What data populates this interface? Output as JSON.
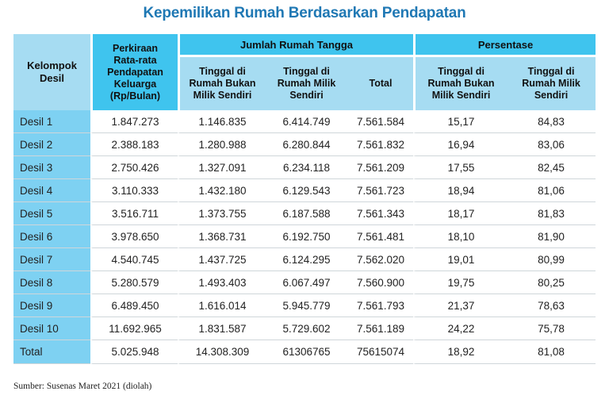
{
  "title": "Kepemilikan Rumah Berdasarkan Pendapatan",
  "header": {
    "group_col": "Kelompok Desil",
    "income_col": "Perkiraan Rata-rata Pendapatan Keluarga (Rp/Bulan)",
    "households_group": "Jumlah Rumah Tangga",
    "percent_group": "Persentase",
    "not_own": "Tinggal di Rumah Bukan Milik Sendiri",
    "own": "Tinggal di Rumah Milik Sendiri",
    "total": "Total"
  },
  "rows": [
    {
      "label": "Desil 1",
      "income": "1.847.273",
      "hh_not_own": "1.146.835",
      "hh_own": "6.414.749",
      "hh_total": "7.561.584",
      "pct_not_own": "15,17",
      "pct_own": "84,83"
    },
    {
      "label": "Desil 2",
      "income": "2.388.183",
      "hh_not_own": "1.280.988",
      "hh_own": "6.280.844",
      "hh_total": "7.561.832",
      "pct_not_own": "16,94",
      "pct_own": "83,06"
    },
    {
      "label": "Desil 3",
      "income": "2.750.426",
      "hh_not_own": "1.327.091",
      "hh_own": "6.234.118",
      "hh_total": "7.561.209",
      "pct_not_own": "17,55",
      "pct_own": "82,45"
    },
    {
      "label": "Desil 4",
      "income": "3.110.333",
      "hh_not_own": "1.432.180",
      "hh_own": "6.129.543",
      "hh_total": "7.561.723",
      "pct_not_own": "18,94",
      "pct_own": "81,06"
    },
    {
      "label": "Desil 5",
      "income": "3.516.711",
      "hh_not_own": "1.373.755",
      "hh_own": "6.187.588",
      "hh_total": "7.561.343",
      "pct_not_own": "18,17",
      "pct_own": "81,83"
    },
    {
      "label": "Desil 6",
      "income": "3.978.650",
      "hh_not_own": "1.368.731",
      "hh_own": "6.192.750",
      "hh_total": "7.561.481",
      "pct_not_own": "18,10",
      "pct_own": "81,90"
    },
    {
      "label": "Desil 7",
      "income": "4.540.745",
      "hh_not_own": "1.437.725",
      "hh_own": "6.124.295",
      "hh_total": "7.562.020",
      "pct_not_own": "19,01",
      "pct_own": "80,99"
    },
    {
      "label": "Desil 8",
      "income": "5.280.579",
      "hh_not_own": "1.493.403",
      "hh_own": "6.067.497",
      "hh_total": "7.560.900",
      "pct_not_own": "19,75",
      "pct_own": "80,25"
    },
    {
      "label": "Desil 9",
      "income": "6.489.450",
      "hh_not_own": "1.616.014",
      "hh_own": "5.945.779",
      "hh_total": "7.561.793",
      "pct_not_own": "21,37",
      "pct_own": "78,63"
    },
    {
      "label": "Desil 10",
      "income": "11.692.965",
      "hh_not_own": "1.831.587",
      "hh_own": "5.729.602",
      "hh_total": "7.561.189",
      "pct_not_own": "24,22",
      "pct_own": "75,78"
    }
  ],
  "total_row": {
    "label": "Total",
    "income": "5.025.948",
    "hh_not_own": "14.308.309",
    "hh_own": "61306765",
    "hh_total": "75615074",
    "pct_not_own": "18,92",
    "pct_own": "81,08"
  },
  "source": "Sumber: Susenas Maret 2021 (diolah)"
}
